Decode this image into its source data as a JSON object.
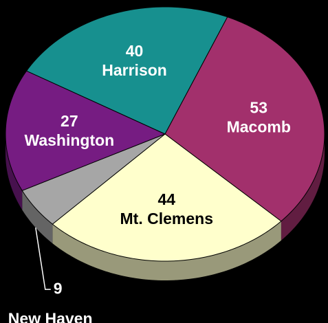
{
  "chart_data": {
    "type": "pie",
    "categories": [
      "Macomb",
      "Mt. Clemens",
      "New Haven",
      "Washington",
      "Harrison"
    ],
    "values": [
      53,
      44,
      9,
      27,
      40
    ],
    "colors": [
      "#a2306c",
      "#ffffcc",
      "#a6a6a6",
      "#761c82",
      "#17908f"
    ],
    "label_colors": [
      "#ffffff",
      "#000000",
      "#ffffff",
      "#ffffff",
      "#ffffff"
    ]
  }
}
